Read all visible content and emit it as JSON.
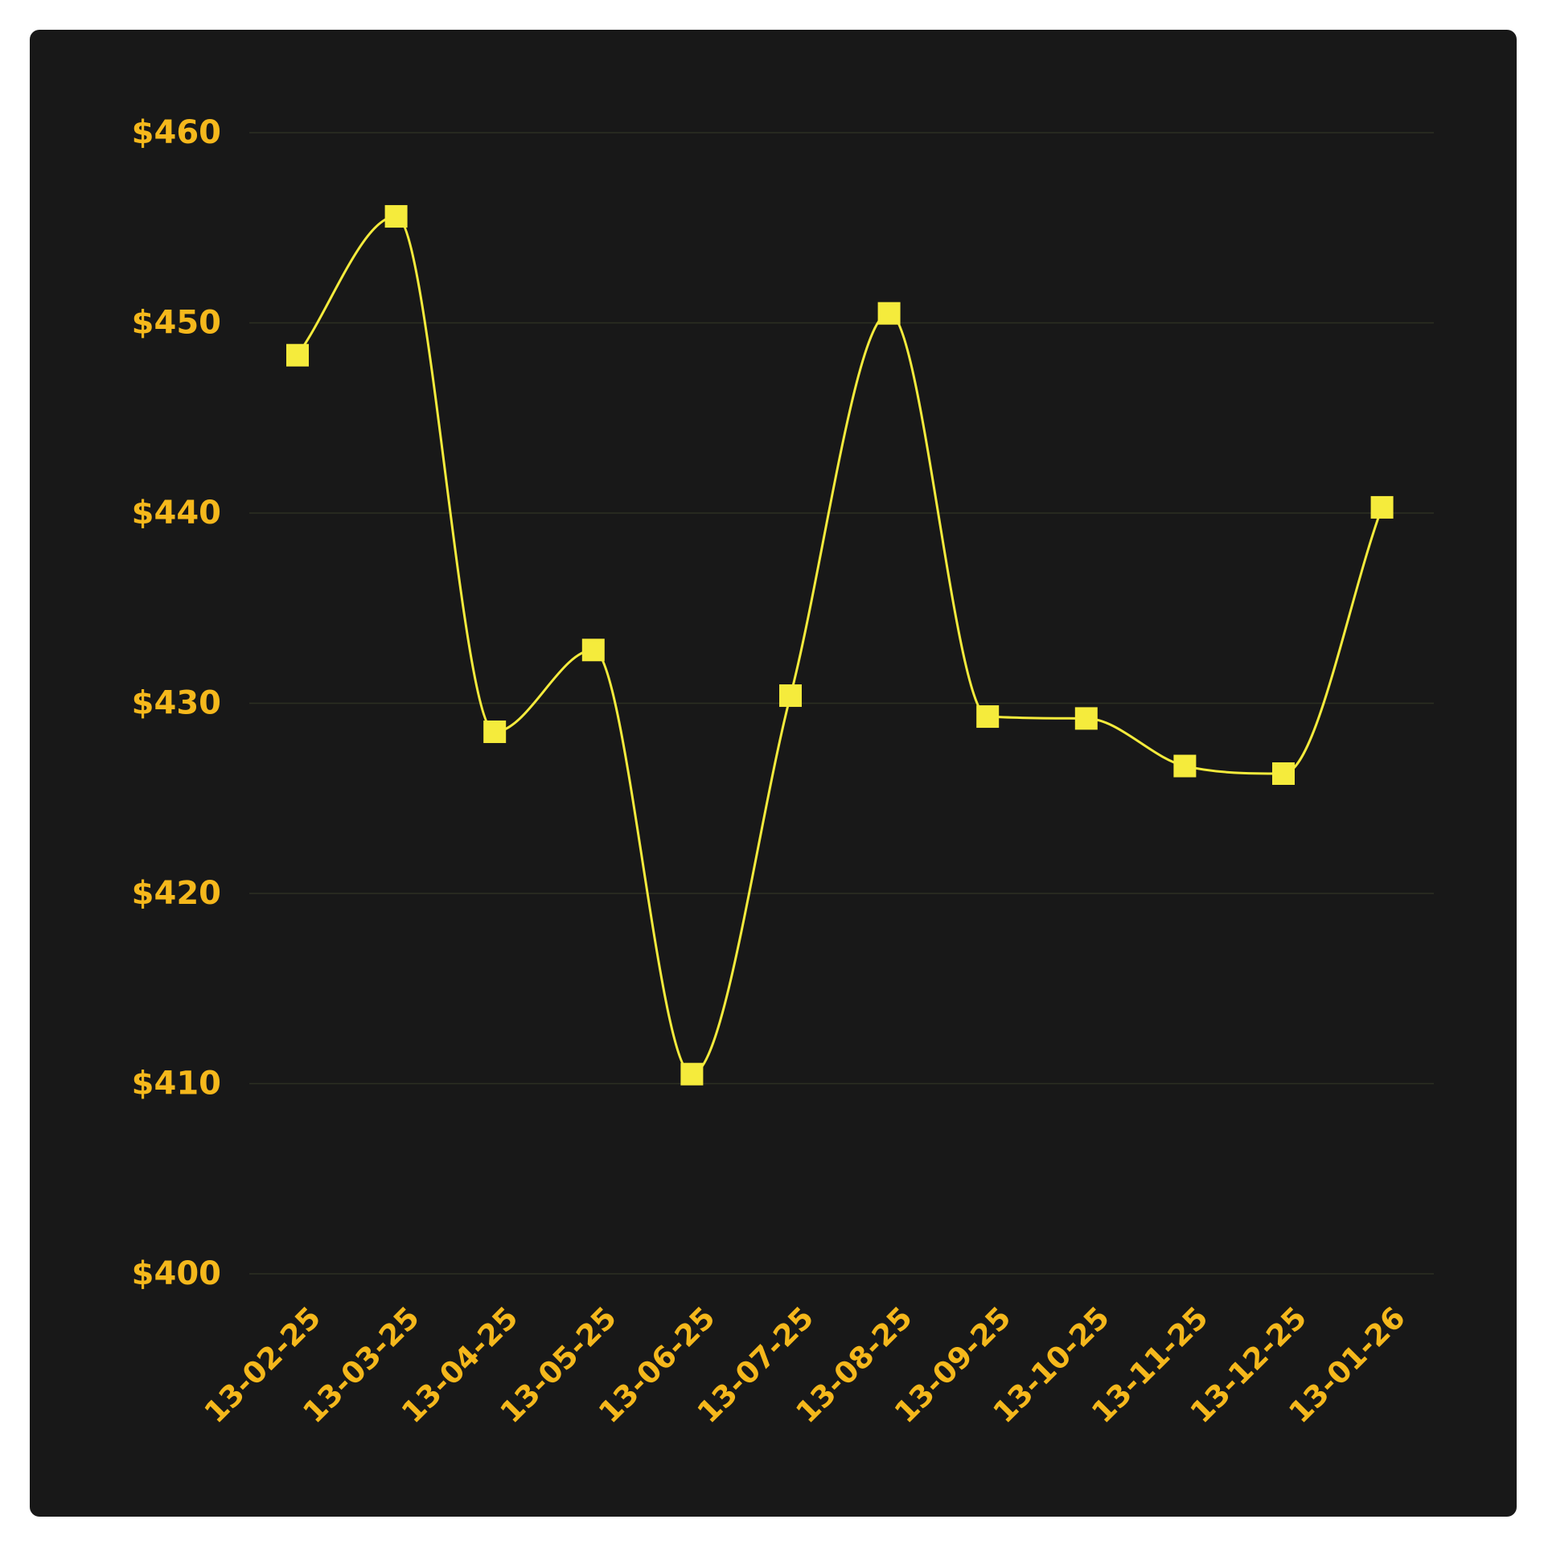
{
  "colors": {
    "background": "#181818",
    "page": "#ffffff",
    "line": "#f5eb3c",
    "marker": "#f5eb3c",
    "tick_label": "#f5b81c",
    "grid": "#2c2f22"
  },
  "chart_data": {
    "type": "line",
    "title": "",
    "xlabel": "",
    "ylabel": "",
    "categories": [
      "13-02-25",
      "13-03-25",
      "13-04-25",
      "13-05-25",
      "13-06-25",
      "13-07-25",
      "13-08-25",
      "13-09-25",
      "13-10-25",
      "13-11-25",
      "13-12-25",
      "13-01-26"
    ],
    "series": [
      {
        "values": [
          448.3,
          455.6,
          428.5,
          432.8,
          410.5,
          430.4,
          450.5,
          429.3,
          429.2,
          426.7,
          426.3,
          440.3
        ]
      }
    ],
    "ylim": [
      400,
      460
    ],
    "yticks": [
      400,
      410,
      420,
      430,
      440,
      450,
      460
    ],
    "ytick_labels": [
      "$400",
      "$410",
      "$420",
      "$430",
      "$440",
      "$450",
      "$460"
    ],
    "grid": true,
    "marker": "square",
    "curve": "smooth",
    "legend": "none"
  }
}
